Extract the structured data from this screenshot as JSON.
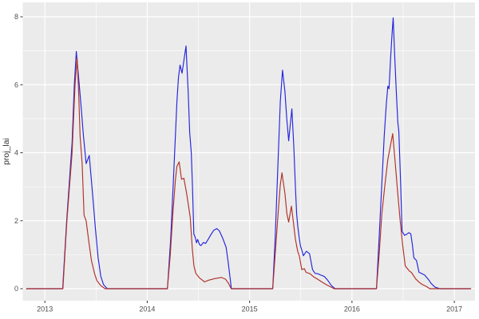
{
  "figure": {
    "background_color": "#ffffff",
    "panel_color": "#ebebeb",
    "grid_color": "#ffffff",
    "tick_mark_color": "#333333",
    "tick_label_color": "#4d4d4d",
    "axis_title_color": "#2f2f2f"
  },
  "chart_data": {
    "type": "line",
    "title": "",
    "xlabel": "",
    "ylabel": "proj_lai",
    "grid": true,
    "legend": "none",
    "xlim": [
      2012.784,
      2017.202
    ],
    "ylim": [
      -0.352,
      8.423
    ],
    "x_ticks": [
      2013,
      2014,
      2015,
      2016,
      2017
    ],
    "x_tick_labels": [
      "2013",
      "2014",
      "2015",
      "2016",
      "2017"
    ],
    "x_minor_ticks": [
      2013.5,
      2014.5,
      2015.5,
      2016.5
    ],
    "y_ticks": [
      0,
      2,
      4,
      6,
      8
    ],
    "y_tick_labels": [
      "0",
      "2",
      "4",
      "6",
      "8"
    ],
    "y_minor_ticks": [
      1,
      3,
      5,
      7
    ],
    "series": [
      {
        "name": "blue-series",
        "color": "#2424dd",
        "points": [
          [
            2012.82,
            0
          ],
          [
            2013.174,
            0
          ],
          [
            2013.213,
            2.0
          ],
          [
            2013.266,
            4.3
          ],
          [
            2013.288,
            6.0
          ],
          [
            2013.307,
            6.98
          ],
          [
            2013.33,
            6.2
          ],
          [
            2013.35,
            5.5
          ],
          [
            2013.377,
            4.5
          ],
          [
            2013.403,
            3.68
          ],
          [
            2013.434,
            3.92
          ],
          [
            2013.455,
            3.18
          ],
          [
            2013.481,
            2.24
          ],
          [
            2013.494,
            1.77
          ],
          [
            2013.52,
            0.91
          ],
          [
            2013.547,
            0.36
          ],
          [
            2013.573,
            0.12
          ],
          [
            2013.61,
            0
          ],
          [
            2014.197,
            0
          ],
          [
            2014.23,
            1.5
          ],
          [
            2014.26,
            3.5
          ],
          [
            2014.29,
            5.5
          ],
          [
            2014.305,
            6.2
          ],
          [
            2014.32,
            6.58
          ],
          [
            2014.34,
            6.34
          ],
          [
            2014.379,
            7.14
          ],
          [
            2014.4,
            5.8
          ],
          [
            2014.415,
            4.6
          ],
          [
            2014.43,
            4.0
          ],
          [
            2014.442,
            3.0
          ],
          [
            2014.455,
            1.61
          ],
          [
            2014.47,
            1.5
          ],
          [
            2014.482,
            1.35
          ],
          [
            2014.493,
            1.45
          ],
          [
            2014.51,
            1.3
          ],
          [
            2014.525,
            1.27
          ],
          [
            2014.55,
            1.36
          ],
          [
            2014.57,
            1.33
          ],
          [
            2014.595,
            1.45
          ],
          [
            2014.62,
            1.58
          ],
          [
            2014.65,
            1.72
          ],
          [
            2014.679,
            1.77
          ],
          [
            2014.705,
            1.7
          ],
          [
            2014.735,
            1.5
          ],
          [
            2014.77,
            1.22
          ],
          [
            2014.79,
            0.8
          ],
          [
            2014.806,
            0.4
          ],
          [
            2014.822,
            0
          ],
          [
            2015.226,
            0
          ],
          [
            2015.25,
            1.5
          ],
          [
            2015.275,
            3.5
          ],
          [
            2015.3,
            5.5
          ],
          [
            2015.322,
            6.43
          ],
          [
            2015.345,
            5.8
          ],
          [
            2015.363,
            5.0
          ],
          [
            2015.382,
            4.35
          ],
          [
            2015.413,
            5.29
          ],
          [
            2015.432,
            4.2
          ],
          [
            2015.447,
            3.0
          ],
          [
            2015.46,
            2.2
          ],
          [
            2015.47,
            1.85
          ],
          [
            2015.485,
            1.5
          ],
          [
            2015.497,
            1.25
          ],
          [
            2015.51,
            1.14
          ],
          [
            2015.525,
            0.97
          ],
          [
            2015.555,
            1.1
          ],
          [
            2015.585,
            1.03
          ],
          [
            2015.615,
            0.56
          ],
          [
            2015.64,
            0.45
          ],
          [
            2015.665,
            0.44
          ],
          [
            2015.695,
            0.4
          ],
          [
            2015.73,
            0.36
          ],
          [
            2015.762,
            0.25
          ],
          [
            2015.8,
            0.09
          ],
          [
            2015.835,
            0
          ],
          [
            2016.24,
            0
          ],
          [
            2016.265,
            1.5
          ],
          [
            2016.29,
            3.0
          ],
          [
            2016.315,
            4.5
          ],
          [
            2016.335,
            5.4
          ],
          [
            2016.35,
            5.96
          ],
          [
            2016.362,
            5.88
          ],
          [
            2016.378,
            6.8
          ],
          [
            2016.392,
            7.5
          ],
          [
            2016.403,
            7.97
          ],
          [
            2016.418,
            6.8
          ],
          [
            2016.433,
            5.8
          ],
          [
            2016.448,
            4.9
          ],
          [
            2016.458,
            4.62
          ],
          [
            2016.474,
            3.2
          ],
          [
            2016.49,
            1.69
          ],
          [
            2016.513,
            1.57
          ],
          [
            2016.534,
            1.6
          ],
          [
            2016.556,
            1.65
          ],
          [
            2016.575,
            1.61
          ],
          [
            2016.59,
            1.3
          ],
          [
            2016.605,
            0.91
          ],
          [
            2016.63,
            0.83
          ],
          [
            2016.655,
            0.48
          ],
          [
            2016.685,
            0.44
          ],
          [
            2016.71,
            0.4
          ],
          [
            2016.745,
            0.28
          ],
          [
            2016.775,
            0.15
          ],
          [
            2016.81,
            0.05
          ],
          [
            2016.858,
            0
          ],
          [
            2017.16,
            0
          ]
        ]
      },
      {
        "name": "red-series",
        "color": "#b03028",
        "points": [
          [
            2012.82,
            0
          ],
          [
            2013.176,
            0
          ],
          [
            2013.215,
            2.0
          ],
          [
            2013.266,
            4.0
          ],
          [
            2013.295,
            6.0
          ],
          [
            2013.315,
            6.78
          ],
          [
            2013.33,
            5.8
          ],
          [
            2013.344,
            4.5
          ],
          [
            2013.364,
            3.68
          ],
          [
            2013.383,
            2.16
          ],
          [
            2013.403,
            2.0
          ],
          [
            2013.43,
            1.38
          ],
          [
            2013.455,
            0.83
          ],
          [
            2013.486,
            0.44
          ],
          [
            2013.508,
            0.24
          ],
          [
            2013.547,
            0.09
          ],
          [
            2013.588,
            0
          ],
          [
            2014.197,
            0
          ],
          [
            2014.225,
            1.0
          ],
          [
            2014.25,
            2.2
          ],
          [
            2014.275,
            3.2
          ],
          [
            2014.29,
            3.6
          ],
          [
            2014.312,
            3.73
          ],
          [
            2014.335,
            3.22
          ],
          [
            2014.358,
            3.25
          ],
          [
            2014.385,
            2.8
          ],
          [
            2014.42,
            2.1
          ],
          [
            2014.44,
            1.2
          ],
          [
            2014.456,
            0.67
          ],
          [
            2014.475,
            0.45
          ],
          [
            2014.51,
            0.32
          ],
          [
            2014.56,
            0.2
          ],
          [
            2014.6,
            0.25
          ],
          [
            2014.665,
            0.3
          ],
          [
            2014.725,
            0.33
          ],
          [
            2014.765,
            0.28
          ],
          [
            2014.795,
            0.15
          ],
          [
            2014.82,
            0
          ],
          [
            2015.226,
            0
          ],
          [
            2015.25,
            1.0
          ],
          [
            2015.278,
            2.2
          ],
          [
            2015.3,
            3.05
          ],
          [
            2015.316,
            3.41
          ],
          [
            2015.345,
            2.8
          ],
          [
            2015.365,
            2.2
          ],
          [
            2015.382,
            1.96
          ],
          [
            2015.408,
            2.43
          ],
          [
            2015.43,
            1.9
          ],
          [
            2015.447,
            1.46
          ],
          [
            2015.47,
            1.1
          ],
          [
            2015.487,
            0.95
          ],
          [
            2015.51,
            0.56
          ],
          [
            2015.535,
            0.59
          ],
          [
            2015.552,
            0.48
          ],
          [
            2015.59,
            0.44
          ],
          [
            2015.625,
            0.35
          ],
          [
            2015.665,
            0.28
          ],
          [
            2015.705,
            0.2
          ],
          [
            2015.748,
            0.12
          ],
          [
            2015.8,
            0.04
          ],
          [
            2015.825,
            0
          ],
          [
            2016.24,
            0
          ],
          [
            2016.265,
            1.0
          ],
          [
            2016.292,
            2.2
          ],
          [
            2016.32,
            3.0
          ],
          [
            2016.35,
            3.8
          ],
          [
            2016.375,
            4.2
          ],
          [
            2016.398,
            4.56
          ],
          [
            2016.42,
            3.8
          ],
          [
            2016.445,
            2.9
          ],
          [
            2016.47,
            2.04
          ],
          [
            2016.495,
            1.3
          ],
          [
            2016.52,
            0.67
          ],
          [
            2016.56,
            0.52
          ],
          [
            2016.58,
            0.48
          ],
          [
            2016.625,
            0.28
          ],
          [
            2016.66,
            0.18
          ],
          [
            2016.69,
            0.12
          ],
          [
            2016.73,
            0.06
          ],
          [
            2016.76,
            0
          ],
          [
            2017.16,
            0
          ]
        ]
      }
    ]
  }
}
